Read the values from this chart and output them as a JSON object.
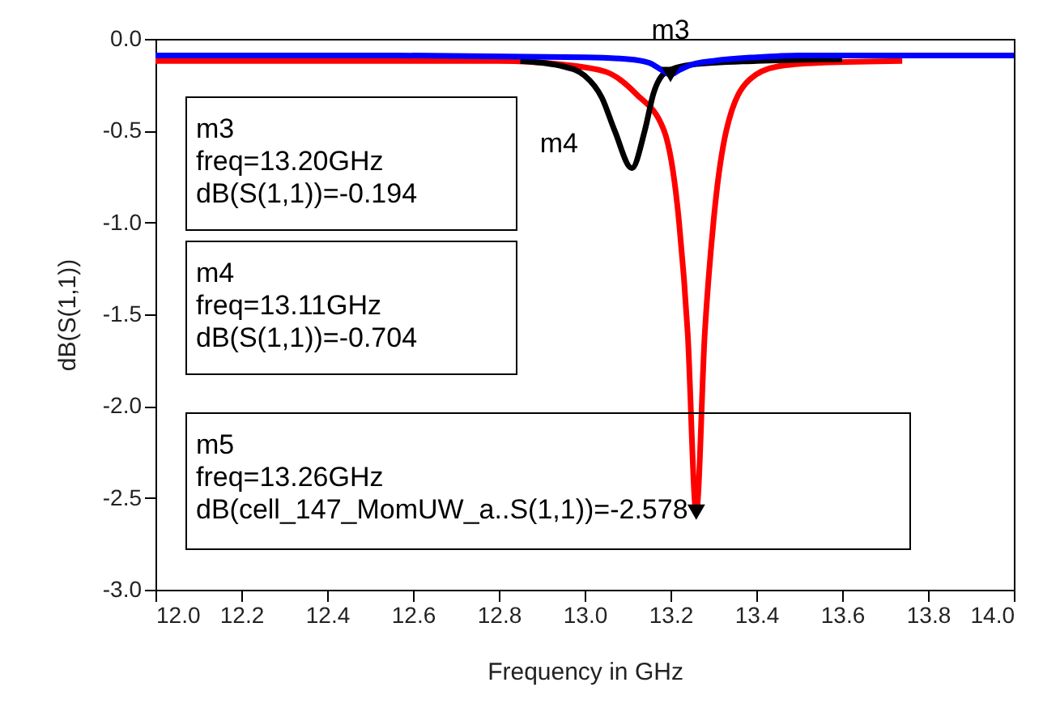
{
  "chart_data": {
    "type": "line",
    "xlabel": "Frequency in GHz",
    "ylabel": "dB(S(1,1))",
    "xlim": [
      12.0,
      14.0
    ],
    "xticks": [
      {
        "value": 12,
        "label": "12.0"
      },
      12.2,
      12.4,
      12.6,
      12.8,
      {
        "value": 13,
        "label": "13.0"
      },
      13.2,
      13.4,
      13.6,
      13.8,
      {
        "value": 14,
        "label": "14.0"
      }
    ],
    "ylim": [
      -3.0,
      0.0
    ],
    "yticks": [
      {
        "value": 0,
        "label": "0.0"
      },
      -0.5,
      {
        "value": -1,
        "label": "-1.0"
      },
      -1.5,
      {
        "value": -2,
        "label": "-2.0"
      },
      -2.5,
      {
        "value": -3,
        "label": "-3.0"
      }
    ],
    "grid": false,
    "line_style": "solid",
    "marker": "none",
    "series": [
      {
        "color": "#ff0000",
        "x": [
          12.0,
          12.8,
          12.95,
          13.05,
          13.12,
          13.185,
          13.22,
          13.24,
          13.26,
          13.28,
          13.3,
          13.33,
          13.385,
          13.45,
          13.55,
          13.74
        ],
        "values": [
          -0.12,
          -0.12,
          -0.14,
          -0.18,
          -0.3,
          -0.5,
          -1.0,
          -1.6,
          -2.578,
          -1.6,
          -1.0,
          -0.5,
          -0.22,
          -0.15,
          -0.13,
          -0.12
        ]
      },
      {
        "color": "#000000",
        "x": [
          12.85,
          12.95,
          13.0,
          13.04,
          13.07,
          13.11,
          13.14,
          13.16,
          13.19,
          13.25,
          13.4,
          13.6
        ],
        "values": [
          -0.12,
          -0.15,
          -0.2,
          -0.32,
          -0.5,
          -0.704,
          -0.5,
          -0.3,
          -0.18,
          -0.14,
          -0.12,
          -0.11
        ]
      },
      {
        "color": "#0000ff",
        "x": [
          12.0,
          12.5,
          13.0,
          13.1,
          13.15,
          13.18,
          13.2,
          13.22,
          13.25,
          13.3,
          13.4,
          13.5,
          14.0
        ],
        "values": [
          -0.09,
          -0.09,
          -0.1,
          -0.11,
          -0.13,
          -0.17,
          -0.194,
          -0.17,
          -0.14,
          -0.12,
          -0.1,
          -0.09,
          -0.09
        ]
      },
      {
        "type": "scatter",
        "marker": "triangle",
        "color": "#000000",
        "x": [
          13.2,
          13.26
        ],
        "values": [
          -0.194,
          -2.578
        ]
      }
    ],
    "annotations": [
      {
        "text": "m3",
        "x": 13.2,
        "y": -0.194
      },
      {
        "text": "m4",
        "x": 13.11,
        "y": -0.704
      },
      "m3\nfreq=13.20GHz\ndB(S(1,1))=-0.194",
      "m4\nfreq=13.11GHz\ndB(S(1,1))=-0.704",
      "m5\nfreq=13.26GHz\ndB(cell_147_MomUW_a..S(1,1))=-2.578"
    ]
  }
}
